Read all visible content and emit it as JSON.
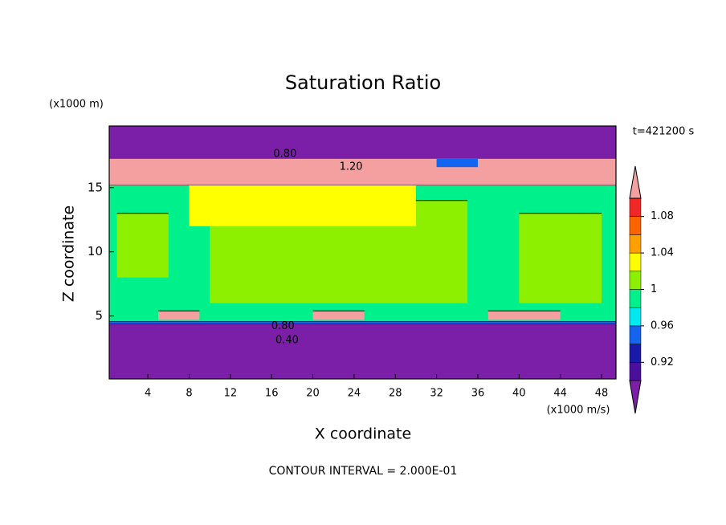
{
  "chart_data": {
    "type": "contour",
    "title": "Saturation Ratio",
    "x_label": "X coordinate",
    "y_label": "Z coordinate",
    "y_unit": "(x1000 m)",
    "x_unit": "(x1000 m/s)",
    "time_label": "t=421200 s",
    "footer": "CONTOUR INTERVAL = 2.000E-01",
    "xlim": [
      0.25,
      49.4
    ],
    "ylim": [
      0.1,
      19.8
    ],
    "xticks": [
      4,
      8,
      12,
      16,
      20,
      24,
      28,
      32,
      36,
      40,
      44,
      48
    ],
    "yticks": [
      5,
      10,
      15
    ],
    "regions": [
      {
        "x": [
          0.25,
          49.4
        ],
        "z": [
          0.1,
          4.4
        ],
        "value": 0.5
      },
      {
        "x": [
          0.25,
          49.4
        ],
        "z": [
          4.4,
          4.6
        ],
        "value": 0.95
      },
      {
        "x": [
          0.25,
          49.4
        ],
        "z": [
          4.6,
          15.2
        ],
        "value": 0.99
      },
      {
        "x": [
          10,
          35
        ],
        "z": [
          6,
          14
        ],
        "value": 1.01
      },
      {
        "x": [
          40,
          48
        ],
        "z": [
          6,
          13
        ],
        "value": 1.01
      },
      {
        "x": [
          1,
          6
        ],
        "z": [
          8,
          13
        ],
        "value": 1.01
      },
      {
        "x": [
          8,
          30
        ],
        "z": [
          12,
          15.2
        ],
        "value": 1.03
      },
      {
        "x": [
          0.25,
          49.4
        ],
        "z": [
          15.2,
          17.3
        ],
        "value": 1.2
      },
      {
        "x": [
          32,
          36
        ],
        "z": [
          16.6,
          17.4
        ],
        "value": 0.95
      },
      {
        "x": [
          0.25,
          49.4
        ],
        "z": [
          17.3,
          19.8
        ],
        "value": 0.6
      },
      {
        "x": [
          5,
          9
        ],
        "z": [
          4.7,
          5.4
        ],
        "value": 1.2
      },
      {
        "x": [
          20,
          25
        ],
        "z": [
          4.7,
          5.4
        ],
        "value": 1.2
      },
      {
        "x": [
          37,
          44
        ],
        "z": [
          4.7,
          5.4
        ],
        "value": 1.2
      }
    ],
    "contour_labels": [
      {
        "value": 0.8,
        "label": "0.80",
        "x": 17.3,
        "z": 17.6
      },
      {
        "value": 1.2,
        "label": "1.20",
        "x": 23.7,
        "z": 16.6
      },
      {
        "value": 0.8,
        "label": "0.80",
        "x": 17.1,
        "z": 4.2
      },
      {
        "value": 0.4,
        "label": "0.40",
        "x": 17.5,
        "z": 3.1
      }
    ],
    "colorbar": {
      "levels": [
        0.9,
        0.92,
        0.94,
        0.96,
        0.98,
        1,
        1.02,
        1.04,
        1.06,
        1.08,
        1.1
      ],
      "colors": [
        "#7b1fa8",
        "#4b0f9e",
        "#1a1aa8",
        "#1464f0",
        "#00e8f0",
        "#00f08c",
        "#8cf000",
        "#ffff00",
        "#ffa000",
        "#ff6400",
        "#f02828",
        "#f5a0a0"
      ],
      "ticks": [
        0.92,
        0.96,
        1,
        1.04,
        1.08
      ]
    }
  }
}
